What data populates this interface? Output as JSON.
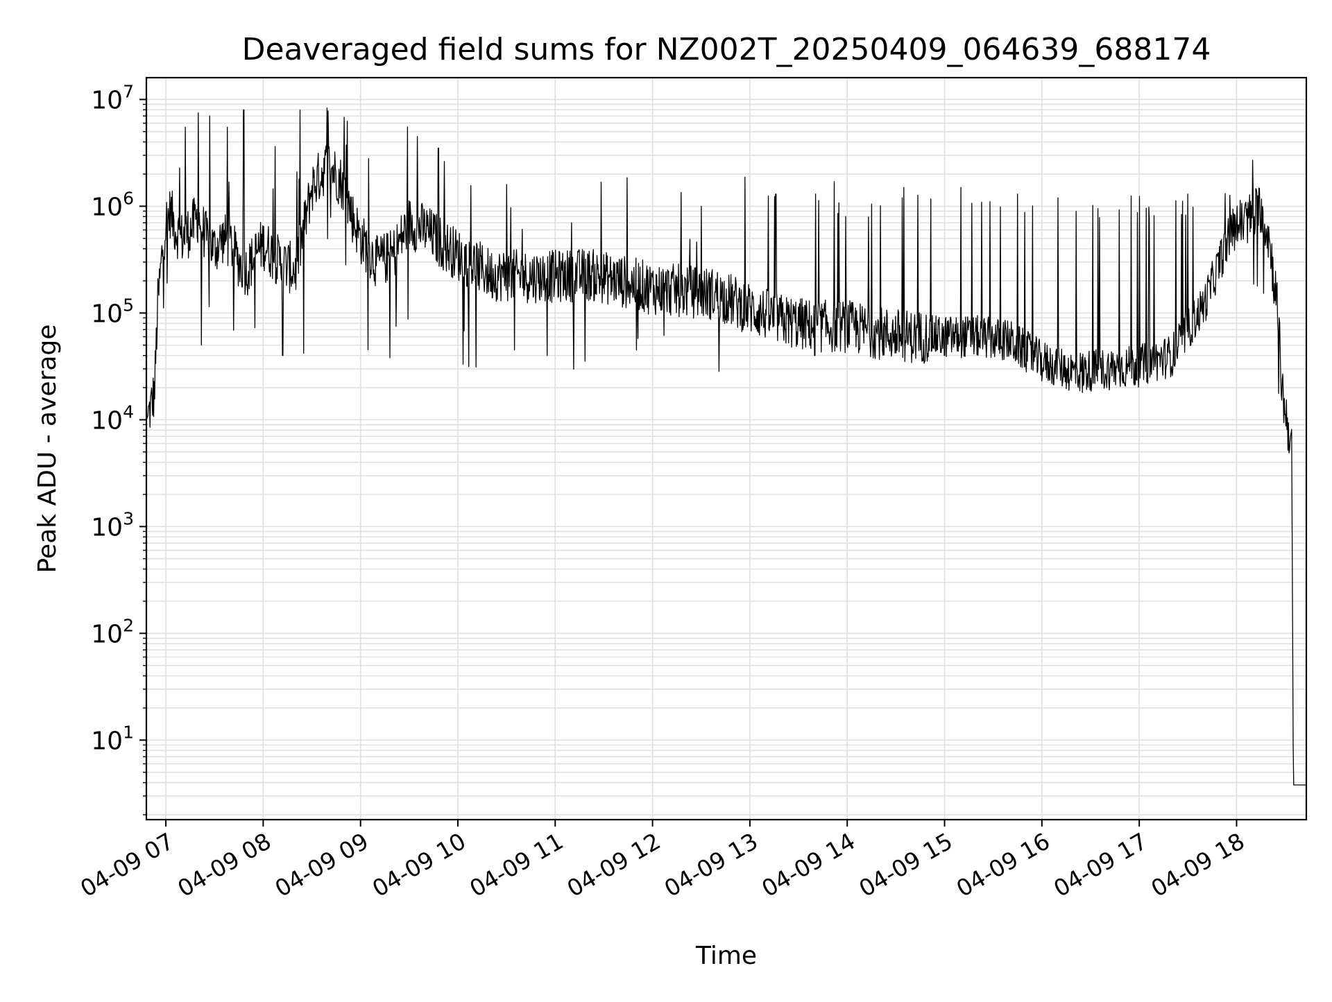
{
  "chart_data": {
    "type": "line",
    "title": "Deaveraged field sums for NZ002T_20250409_064639_688174",
    "xlabel": "Time",
    "ylabel": "Peak ADU - average",
    "yscale": "log",
    "ylim": [
      1.8,
      16000000
    ],
    "xlim": [
      "04-09 06:48",
      "04-09 18:43"
    ],
    "grid": true,
    "line_color": "#000000",
    "grid_color": "#e0e0e0",
    "x_ticks": [
      "04-09 07",
      "04-09 08",
      "04-09 09",
      "04-09 10",
      "04-09 11",
      "04-09 12",
      "04-09 13",
      "04-09 14",
      "04-09 15",
      "04-09 16",
      "04-09 17",
      "04-09 18"
    ],
    "y_ticks": [
      {
        "base": "10",
        "exp": "1",
        "value": 10
      },
      {
        "base": "10",
        "exp": "2",
        "value": 100
      },
      {
        "base": "10",
        "exp": "3",
        "value": 1000
      },
      {
        "base": "10",
        "exp": "4",
        "value": 10000
      },
      {
        "base": "10",
        "exp": "5",
        "value": 100000
      },
      {
        "base": "10",
        "exp": "6",
        "value": 1000000
      },
      {
        "base": "10",
        "exp": "7",
        "value": 10000000
      }
    ],
    "series": [
      {
        "x": [
          "04-09 06:48",
          "04-09 06:50",
          "04-09 06:53",
          "04-09 06:55",
          "04-09 06:58",
          "04-09 07:00",
          "04-09 07:03",
          "04-09 07:06",
          "04-09 07:10",
          "04-09 07:15",
          "04-09 07:20",
          "04-09 07:25",
          "04-09 07:30",
          "04-09 07:35",
          "04-09 07:40",
          "04-09 07:45",
          "04-09 07:50",
          "04-09 07:55",
          "04-09 08:00",
          "04-09 08:10",
          "04-09 08:20",
          "04-09 08:30",
          "04-09 08:40",
          "04-09 08:45",
          "04-09 08:50",
          "04-09 08:55",
          "04-09 09:00",
          "04-09 09:10",
          "04-09 09:20",
          "04-09 09:30",
          "04-09 09:40",
          "04-09 09:50",
          "04-09 10:00",
          "04-09 10:20",
          "04-09 10:40",
          "04-09 11:00",
          "04-09 11:20",
          "04-09 11:40",
          "04-09 12:00",
          "04-09 12:20",
          "04-09 12:40",
          "04-09 13:00",
          "04-09 13:20",
          "04-09 13:40",
          "04-09 14:00",
          "04-09 14:20",
          "04-09 14:40",
          "04-09 15:00",
          "04-09 15:20",
          "04-09 15:40",
          "04-09 16:00",
          "04-09 16:20",
          "04-09 16:40",
          "04-09 17:00",
          "04-09 17:20",
          "04-09 17:40",
          "04-09 17:55",
          "04-09 18:00",
          "04-09 18:10",
          "04-09 18:15",
          "04-09 18:20",
          "04-09 18:25",
          "04-09 18:28",
          "04-09 18:30",
          "04-09 18:33",
          "04-09 18:34",
          "04-09 18:35",
          "04-09 18:38",
          "04-09 18:43"
        ],
        "values": [
          10000,
          12000,
          18000,
          120000,
          400000,
          700000,
          900000,
          600000,
          500000,
          600000,
          800000,
          500000,
          400000,
          500000,
          450000,
          300000,
          250000,
          350000,
          450000,
          300000,
          250000,
          1500000,
          2500000,
          2000000,
          1500000,
          800000,
          500000,
          300000,
          350000,
          700000,
          600000,
          450000,
          350000,
          230000,
          220000,
          220000,
          230000,
          200000,
          170000,
          160000,
          150000,
          110000,
          85000,
          75000,
          75000,
          65000,
          60000,
          60000,
          60000,
          55000,
          35000,
          28000,
          30000,
          32000,
          40000,
          120000,
          500000,
          650000,
          800000,
          1000000,
          500000,
          120000,
          20000,
          12000,
          7000,
          6000,
          3.8,
          3.8,
          3.8
        ],
        "spikes": [
          {
            "x": "04-09 07:12",
            "value": 5500000
          },
          {
            "x": "04-09 07:20",
            "value": 7500000
          },
          {
            "x": "04-09 07:27",
            "value": 7000000
          },
          {
            "x": "04-09 07:38",
            "value": 5500000
          },
          {
            "x": "04-09 07:48",
            "value": 8000000
          },
          {
            "x": "04-09 08:22",
            "value": 1800000
          },
          {
            "x": "04-09 08:40",
            "value": 7800000
          },
          {
            "x": "04-09 08:50",
            "value": 6800000
          },
          {
            "x": "04-09 09:05",
            "value": 2800000
          },
          {
            "x": "04-09 09:35",
            "value": 4500000
          },
          {
            "x": "04-09 09:48",
            "value": 3500000
          },
          {
            "x": "04-09 10:30",
            "value": 1600000
          },
          {
            "x": "04-09 11:10",
            "value": 700000
          },
          {
            "x": "04-09 12:30",
            "value": 1000000
          },
          {
            "x": "04-09 13:16",
            "value": 1300000
          },
          {
            "x": "04-09 13:52",
            "value": 1700000
          },
          {
            "x": "04-09 14:35",
            "value": 1500000
          },
          {
            "x": "04-09 15:10",
            "value": 1500000
          },
          {
            "x": "04-09 15:45",
            "value": 1300000
          },
          {
            "x": "04-09 16:10",
            "value": 1200000
          },
          {
            "x": "04-09 16:55",
            "value": 1250000
          },
          {
            "x": "04-09 17:30",
            "value": 1300000
          },
          {
            "x": "04-09 18:10",
            "value": 2700000
          }
        ],
        "dips": [
          {
            "x": "04-09 07:22",
            "value": 50000
          },
          {
            "x": "04-09 08:12",
            "value": 40000
          },
          {
            "x": "04-09 08:25",
            "value": 42000
          },
          {
            "x": "04-09 09:18",
            "value": 38000
          },
          {
            "x": "04-09 10:35",
            "value": 45000
          },
          {
            "x": "04-09 10:55",
            "value": 40000
          },
          {
            "x": "04-09 11:50",
            "value": 45000
          },
          {
            "x": "04-09 13:40",
            "value": 40000
          },
          {
            "x": "04-09 15:00",
            "value": 40000
          },
          {
            "x": "04-09 16:25",
            "value": 18000
          },
          {
            "x": "04-09 16:40",
            "value": 20000
          }
        ]
      }
    ]
  }
}
